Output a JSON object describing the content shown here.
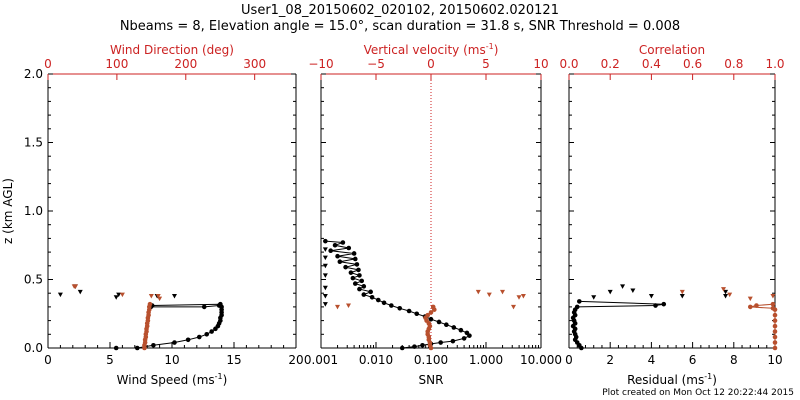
{
  "figure": {
    "title_line1": "User1_08_20150602_020102, 20150602.020121",
    "title_line2": "Nbeams = 8, Elevation angle = 15.0°, scan duration = 31.8 s, SNR Threshold = 0.008",
    "footer": "Plot created on Mon Oct 12 20:22:44 2015",
    "colors": {
      "axis": "#000000",
      "secondary_axis": "#cc2222",
      "primary_series": "#000000",
      "secondary_series": "#b8502e"
    }
  },
  "chart_data": [
    {
      "type": "scatter",
      "ylabel": "z (km AGL)",
      "ylim": [
        0,
        2.0
      ],
      "yticks": [
        "0.0",
        "0.5",
        "1.0",
        "1.5",
        "2.0"
      ],
      "xlabel": "Wind Speed (ms",
      "xlabel_sup": "-1",
      "xlabel_end": ")",
      "xlim": [
        0,
        20
      ],
      "xticks": [
        "0",
        "5",
        "10",
        "15",
        "20"
      ],
      "x2label": "Wind Direction (deg)",
      "x2lim": [
        0,
        360
      ],
      "x2ticks": [
        "0",
        "100",
        "200",
        "300"
      ],
      "series": [
        {
          "axis": "bottom",
          "style": "dots-line",
          "points": [
            [
              13.8,
              0.31
            ],
            [
              12.6,
              0.3
            ],
            [
              8.3,
              0.3
            ],
            [
              8.4,
              0.31
            ],
            [
              13.9,
              0.32
            ],
            [
              14.0,
              0.3
            ],
            [
              14.0,
              0.28
            ],
            [
              14.0,
              0.26
            ],
            [
              14.0,
              0.24
            ],
            [
              13.9,
              0.22
            ],
            [
              13.9,
              0.2
            ],
            [
              13.8,
              0.18
            ],
            [
              13.7,
              0.16
            ],
            [
              13.5,
              0.14
            ],
            [
              13.2,
              0.12
            ],
            [
              12.8,
              0.1
            ],
            [
              12.2,
              0.08
            ],
            [
              11.3,
              0.06
            ],
            [
              10.2,
              0.04
            ],
            [
              8.5,
              0.02
            ],
            [
              7.2,
              0.0
            ],
            [
              5.5,
              0.0
            ]
          ]
        },
        {
          "axis": "bottom",
          "style": "markers",
          "points": [
            [
              1.0,
              0.39
            ],
            [
              2.2,
              0.45
            ],
            [
              2.6,
              0.41
            ],
            [
              5.5,
              0.37
            ],
            [
              5.7,
              0.39
            ],
            [
              8.8,
              0.38
            ],
            [
              10.2,
              0.38
            ]
          ]
        },
        {
          "axis": "top",
          "style": "dots-line",
          "points": [
            [
              148,
              0.32
            ],
            [
              147,
              0.3
            ],
            [
              147,
              0.28
            ],
            [
              146,
              0.26
            ],
            [
              146,
              0.24
            ],
            [
              145,
              0.22
            ],
            [
              145,
              0.2
            ],
            [
              144,
              0.18
            ],
            [
              144,
              0.16
            ],
            [
              143,
              0.14
            ],
            [
              143,
              0.12
            ],
            [
              142,
              0.1
            ],
            [
              142,
              0.08
            ],
            [
              141,
              0.06
            ],
            [
              141,
              0.04
            ],
            [
              140,
              0.02
            ],
            [
              140,
              0.0
            ]
          ]
        },
        {
          "axis": "top",
          "style": "markers",
          "points": [
            [
              38,
              0.45
            ],
            [
              40,
              0.45
            ],
            [
              108,
              0.39
            ],
            [
              150,
              0.38
            ],
            [
              160,
              0.38
            ],
            [
              162,
              0.36
            ]
          ]
        }
      ]
    },
    {
      "type": "scatter",
      "xlabel": "SNR",
      "xscale": "log",
      "xlim": [
        0.001,
        10
      ],
      "xticks": [
        "0.001",
        "0.010",
        "0.100",
        "1.000",
        "10.000"
      ],
      "x2label": "Vertical velocity (ms",
      "x2label_sup": "-1",
      "x2label_end": ")",
      "x2lim": [
        -10,
        10
      ],
      "x2ticks": [
        "−10",
        "−5",
        "0",
        "5",
        "10"
      ],
      "zero_line": 0,
      "series": [
        {
          "axis": "bottom",
          "style": "dots-line",
          "points": [
            [
              0.0012,
              0.78
            ],
            [
              0.0025,
              0.77
            ],
            [
              0.0018,
              0.75
            ],
            [
              0.0032,
              0.73
            ],
            [
              0.0015,
              0.71
            ],
            [
              0.004,
              0.69
            ],
            [
              0.002,
              0.67
            ],
            [
              0.0042,
              0.65
            ],
            [
              0.0022,
              0.63
            ],
            [
              0.0045,
              0.61
            ],
            [
              0.0028,
              0.59
            ],
            [
              0.0048,
              0.57
            ],
            [
              0.0035,
              0.55
            ],
            [
              0.005,
              0.53
            ],
            [
              0.0038,
              0.51
            ],
            [
              0.0055,
              0.49
            ],
            [
              0.0042,
              0.47
            ],
            [
              0.006,
              0.45
            ],
            [
              0.005,
              0.43
            ],
            [
              0.008,
              0.41
            ],
            [
              0.006,
              0.39
            ],
            [
              0.0085,
              0.37
            ],
            [
              0.011,
              0.35
            ],
            [
              0.014,
              0.33
            ],
            [
              0.019,
              0.31
            ],
            [
              0.027,
              0.29
            ],
            [
              0.04,
              0.27
            ],
            [
              0.055,
              0.25
            ],
            [
              0.078,
              0.23
            ],
            [
              0.1,
              0.21
            ],
            [
              0.14,
              0.19
            ],
            [
              0.19,
              0.17
            ],
            [
              0.26,
              0.15
            ],
            [
              0.35,
              0.13
            ],
            [
              0.45,
              0.11
            ],
            [
              0.5,
              0.09
            ],
            [
              0.4,
              0.07
            ],
            [
              0.25,
              0.05
            ],
            [
              0.15,
              0.04
            ],
            [
              0.1,
              0.03
            ],
            [
              0.07,
              0.02
            ],
            [
              0.05,
              0.01
            ],
            [
              0.03,
              0.0
            ]
          ]
        },
        {
          "axis": "bottom",
          "style": "markers",
          "points": [
            [
              0.0012,
              0.72
            ],
            [
              0.0012,
              0.66
            ],
            [
              0.0012,
              0.6
            ],
            [
              0.0012,
              0.53
            ],
            [
              0.0012,
              0.44
            ],
            [
              0.0012,
              0.38
            ],
            [
              0.0012,
              0.32
            ]
          ]
        },
        {
          "axis": "top",
          "style": "dots-line",
          "points": [
            [
              0.2,
              0.3
            ],
            [
              0.3,
              0.28
            ],
            [
              0.0,
              0.26
            ],
            [
              -0.3,
              0.24
            ],
            [
              -0.5,
              0.22
            ],
            [
              -0.4,
              0.2
            ],
            [
              -0.2,
              0.18
            ],
            [
              -0.1,
              0.16
            ],
            [
              -0.2,
              0.14
            ],
            [
              -0.3,
              0.12
            ],
            [
              -0.3,
              0.1
            ],
            [
              -0.2,
              0.08
            ],
            [
              -0.2,
              0.06
            ],
            [
              -0.1,
              0.04
            ],
            [
              -0.1,
              0.02
            ],
            [
              0.0,
              0.0
            ]
          ]
        },
        {
          "axis": "top",
          "style": "markers",
          "points": [
            [
              4.3,
              0.41
            ],
            [
              5.3,
              0.39
            ],
            [
              6.5,
              0.41
            ],
            [
              8.4,
              0.38
            ],
            [
              8.0,
              0.37
            ],
            [
              7.5,
              0.3
            ],
            [
              -7.5,
              0.31
            ],
            [
              -8.5,
              0.3
            ]
          ]
        }
      ]
    },
    {
      "type": "scatter",
      "xlabel": "Residual (ms",
      "xlabel_sup": "-1",
      "xlabel_end": ")",
      "xlim": [
        0,
        10
      ],
      "xticks": [
        "0",
        "2",
        "4",
        "6",
        "8",
        "10"
      ],
      "x2label": "Correlation",
      "x2lim": [
        0,
        1.0
      ],
      "x2ticks": [
        "0.0",
        "0.2",
        "0.4",
        "0.6",
        "0.8",
        "1.0"
      ],
      "series": [
        {
          "axis": "bottom",
          "style": "dots-line",
          "points": [
            [
              0.5,
              0.34
            ],
            [
              4.6,
              0.32
            ],
            [
              4.2,
              0.31
            ],
            [
              0.4,
              0.3
            ],
            [
              0.3,
              0.28
            ],
            [
              0.25,
              0.26
            ],
            [
              0.3,
              0.24
            ],
            [
              0.2,
              0.22
            ],
            [
              0.25,
              0.2
            ],
            [
              0.3,
              0.18
            ],
            [
              0.2,
              0.16
            ],
            [
              0.3,
              0.14
            ],
            [
              0.25,
              0.12
            ],
            [
              0.3,
              0.1
            ],
            [
              0.35,
              0.08
            ],
            [
              0.3,
              0.06
            ],
            [
              0.4,
              0.04
            ],
            [
              0.5,
              0.02
            ],
            [
              0.6,
              0.0
            ]
          ]
        },
        {
          "axis": "bottom",
          "style": "markers",
          "points": [
            [
              1.2,
              0.37
            ],
            [
              2.0,
              0.41
            ],
            [
              2.6,
              0.45
            ],
            [
              3.1,
              0.42
            ],
            [
              4.0,
              0.38
            ],
            [
              5.5,
              0.38
            ],
            [
              7.6,
              0.38
            ],
            [
              7.6,
              0.41
            ]
          ]
        },
        {
          "axis": "top",
          "style": "dots-line",
          "points": [
            [
              0.99,
              0.32
            ],
            [
              0.91,
              0.31
            ],
            [
              0.88,
              0.3
            ],
            [
              0.99,
              0.29
            ],
            [
              1.0,
              0.28
            ],
            [
              1.0,
              0.24
            ],
            [
              1.0,
              0.2
            ],
            [
              1.0,
              0.16
            ],
            [
              1.0,
              0.12
            ],
            [
              1.0,
              0.08
            ],
            [
              1.0,
              0.04
            ],
            [
              1.0,
              0.0
            ]
          ]
        },
        {
          "axis": "top",
          "style": "markers",
          "points": [
            [
              0.55,
              0.41
            ],
            [
              0.75,
              0.43
            ],
            [
              0.78,
              0.39
            ],
            [
              0.88,
              0.36
            ],
            [
              0.99,
              0.38
            ]
          ]
        }
      ]
    }
  ]
}
